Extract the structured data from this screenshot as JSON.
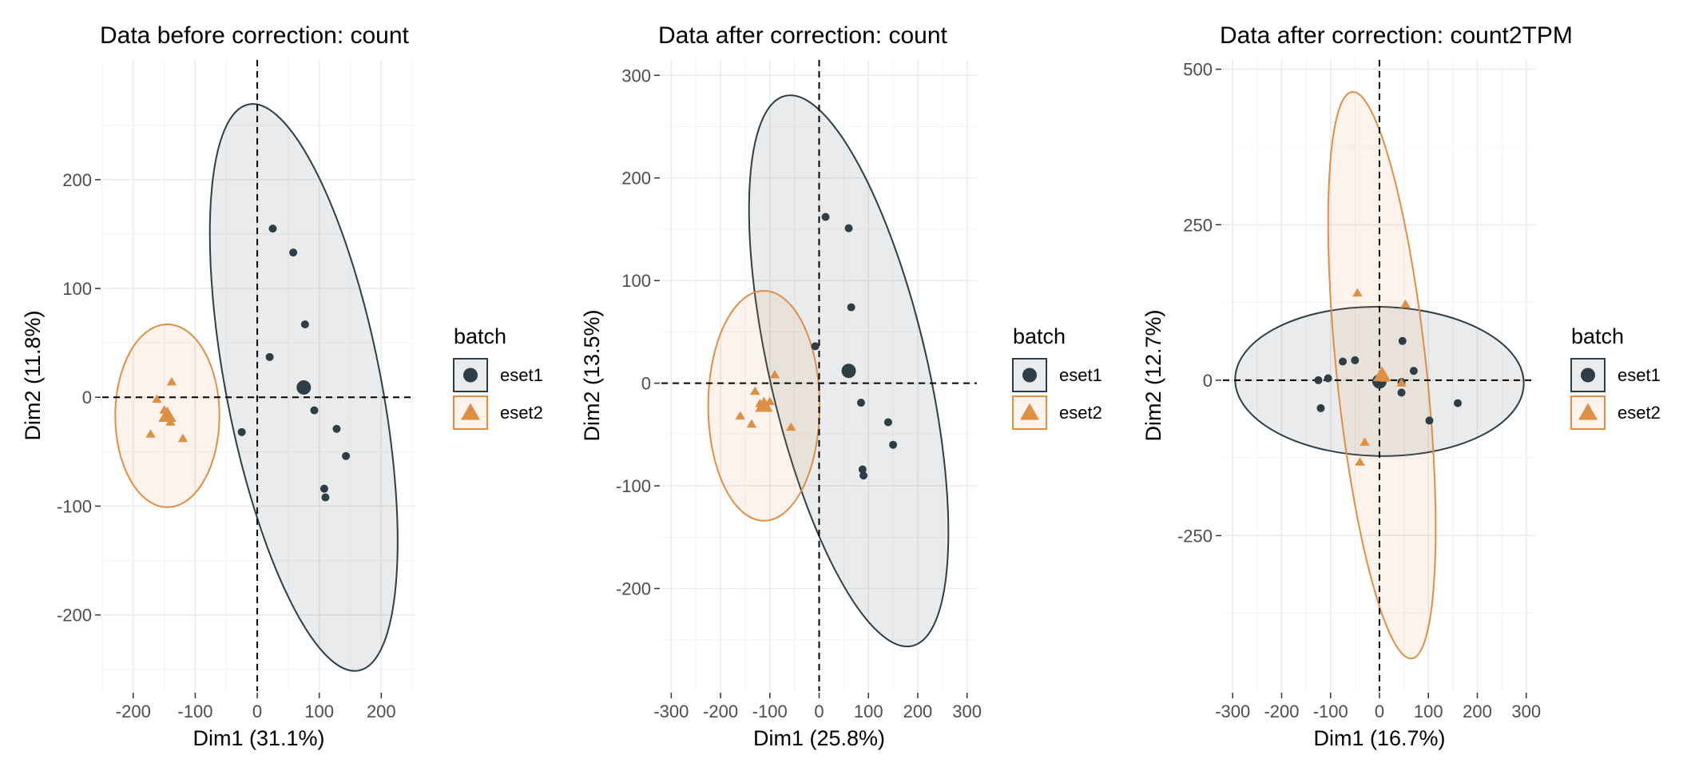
{
  "chart_data": [
    {
      "type": "scatter",
      "title": "Data before correction: count",
      "xlabel": "Dim1 (31.1%)",
      "ylabel": "Dim2 (11.8%)",
      "xlim": [
        -250,
        255
      ],
      "ylim": [
        -270,
        310
      ],
      "xticks": [
        -200,
        -100,
        0,
        100,
        200
      ],
      "yticks": [
        -200,
        -100,
        0,
        100,
        200
      ],
      "xtick_labels": [
        "-200",
        "-100",
        "0",
        "100",
        "200"
      ],
      "ytick_labels": [
        "-200",
        "-100",
        "0",
        "100",
        "200"
      ],
      "grid": true,
      "legend": {
        "title": "batch",
        "position": "right"
      },
      "series": [
        {
          "name": "eset1",
          "color": "#2d3e46",
          "marker": "circle",
          "points": [
            [
              25,
              155
            ],
            [
              58,
              133
            ],
            [
              77,
              67
            ],
            [
              20,
              37
            ],
            [
              -25,
              -32
            ],
            [
              92,
              -12
            ],
            [
              128,
              -29
            ],
            [
              143,
              -54
            ],
            [
              108,
              -84
            ],
            [
              110,
              -92
            ]
          ],
          "centroid": [
            75,
            9
          ],
          "ellipse": {
            "cx": 75,
            "cy": 9,
            "rx": 125,
            "ry": 265,
            "angle": 11
          }
        },
        {
          "name": "eset2",
          "color": "#df8f44",
          "marker": "triangle",
          "points": [
            [
              -162,
              -2
            ],
            [
              -138,
              14
            ],
            [
              -150,
              -12
            ],
            [
              -140,
              -23
            ],
            [
              -120,
              -38
            ],
            [
              -172,
              -34
            ],
            [
              -145,
              -18
            ]
          ],
          "centroid": [
            -145,
            -17
          ],
          "ellipse": {
            "cx": -145,
            "cy": -17,
            "rx": 84,
            "ry": 84,
            "angle": 0
          }
        }
      ]
    },
    {
      "type": "scatter",
      "title": "Data after correction: count",
      "xlabel": "Dim1 (25.8%)",
      "ylabel": "Dim2 (13.5%)",
      "xlim": [
        -320,
        320
      ],
      "ylim": [
        -300,
        315
      ],
      "xticks": [
        -300,
        -200,
        -100,
        0,
        100,
        200,
        300
      ],
      "yticks": [
        -200,
        -100,
        0,
        100,
        200,
        300
      ],
      "xtick_labels": [
        "-300",
        "-200",
        "-100",
        "0",
        "100",
        "200",
        "300"
      ],
      "ytick_labels": [
        "-200",
        "-100",
        "0",
        "100",
        "200",
        "300"
      ],
      "grid": true,
      "legend": {
        "title": "batch",
        "position": "right"
      },
      "series": [
        {
          "name": "eset1",
          "color": "#2d3e46",
          "marker": "circle",
          "points": [
            [
              13,
              162
            ],
            [
              60,
              151
            ],
            [
              65,
              74
            ],
            [
              -8,
              36
            ],
            [
              85,
              -19
            ],
            [
              140,
              -38
            ],
            [
              150,
              -60
            ],
            [
              88,
              -84
            ],
            [
              90,
              -90
            ]
          ],
          "centroid": [
            60,
            12
          ],
          "ellipse": {
            "cx": 60,
            "cy": 12,
            "rx": 160,
            "ry": 275,
            "angle": 13
          }
        },
        {
          "name": "eset2",
          "color": "#df8f44",
          "marker": "triangle",
          "points": [
            [
              -130,
              -8
            ],
            [
              -90,
              8
            ],
            [
              -100,
              -18
            ],
            [
              -160,
              -32
            ],
            [
              -137,
              -40
            ],
            [
              -57,
              -43
            ],
            [
              -120,
              -20
            ]
          ],
          "centroid": [
            -112,
            -22
          ],
          "ellipse": {
            "cx": -112,
            "cy": -22,
            "rx": 113,
            "ry": 112,
            "angle": 0
          }
        }
      ]
    },
    {
      "type": "scatter",
      "title": "Data after correction: count2TPM",
      "xlabel": "Dim1 (16.7%)",
      "ylabel": "Dim2 (12.7%)",
      "xlim": [
        -320,
        320
      ],
      "ylim": [
        -500,
        515
      ],
      "xticks": [
        -300,
        -200,
        -100,
        0,
        100,
        200,
        300
      ],
      "yticks": [
        -250,
        0,
        250,
        500
      ],
      "xtick_labels": [
        "-300",
        "-200",
        "-100",
        "0",
        "100",
        "200",
        "300"
      ],
      "ytick_labels": [
        "-250",
        "0",
        "250",
        "500"
      ],
      "grid": true,
      "legend": {
        "title": "batch",
        "position": "right"
      },
      "series": [
        {
          "name": "eset1",
          "color": "#2d3e46",
          "marker": "circle",
          "points": [
            [
              -125,
              0
            ],
            [
              -105,
              3
            ],
            [
              -120,
              -45
            ],
            [
              -75,
              30
            ],
            [
              -50,
              32
            ],
            [
              47,
              63
            ],
            [
              70,
              15
            ],
            [
              45,
              -20
            ],
            [
              102,
              -65
            ],
            [
              160,
              -37
            ],
            [
              45,
              -3
            ]
          ],
          "centroid": [
            0,
            -2
          ],
          "ellipse": {
            "cx": 0,
            "cy": -2,
            "rx": 295,
            "ry": 120,
            "angle": -1
          }
        },
        {
          "name": "eset2",
          "color": "#df8f44",
          "marker": "triangle",
          "points": [
            [
              -45,
              140
            ],
            [
              53,
              122
            ],
            [
              -30,
              -100
            ],
            [
              -40,
              -132
            ],
            [
              45,
              -5
            ],
            [
              10,
              3
            ]
          ],
          "centroid": [
            5,
            8
          ],
          "ellipse": {
            "cx": 5,
            "cy": 8,
            "rx": 92,
            "ry": 458,
            "angle": 6
          }
        }
      ]
    }
  ]
}
